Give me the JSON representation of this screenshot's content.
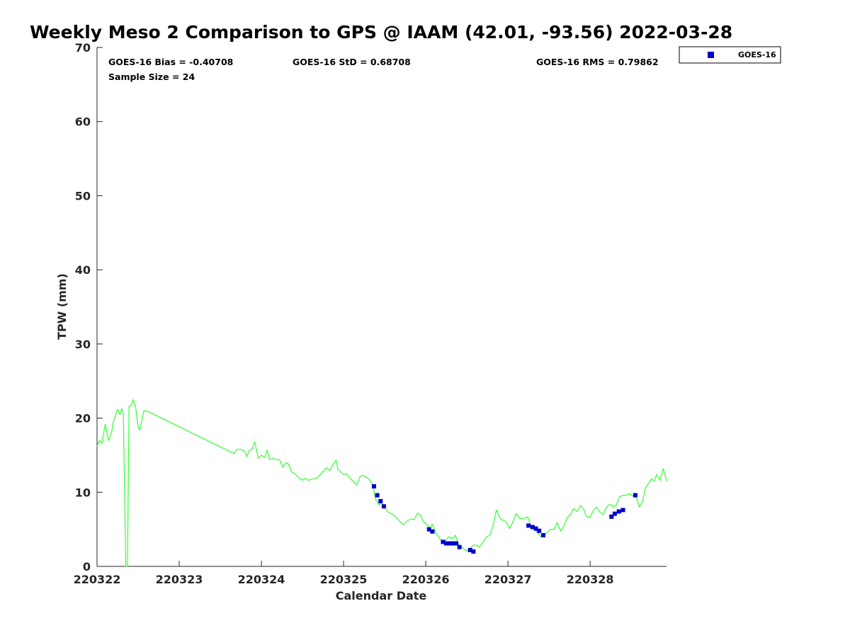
{
  "chart_data": {
    "type": "line",
    "title": "Weekly Meso 2 Comparison to GPS @ IAAM (42.01, -93.56) 2022-03-28",
    "xlabel": "Calendar Date",
    "ylabel": "TPW (mm)",
    "xlim": [
      220322,
      220328.93
    ],
    "ylim": [
      0,
      70
    ],
    "grid": false,
    "x_ticks": [
      {
        "value": 220322,
        "label": "220322"
      },
      {
        "value": 220323,
        "label": "220323"
      },
      {
        "value": 220324,
        "label": "220324"
      },
      {
        "value": 220325,
        "label": "220325"
      },
      {
        "value": 220326,
        "label": "220326"
      },
      {
        "value": 220327,
        "label": "220327"
      },
      {
        "value": 220328,
        "label": "220328"
      }
    ],
    "y_ticks": [
      {
        "value": 0,
        "label": "0"
      },
      {
        "value": 10,
        "label": "10"
      },
      {
        "value": 20,
        "label": "20"
      },
      {
        "value": 30,
        "label": "30"
      },
      {
        "value": 40,
        "label": "40"
      },
      {
        "value": 50,
        "label": "50"
      },
      {
        "value": 60,
        "label": "60"
      },
      {
        "value": 70,
        "label": "70"
      }
    ],
    "stats": {
      "bias": "GOES-16 Bias = -0.40708",
      "std": "GOES-16 StD = 0.68708",
      "rms": "GOES-16 RMS = 0.79862",
      "sample_size": "Sample Size = 24"
    },
    "legend": {
      "placement": "top-right",
      "entries": [
        {
          "label": "GOES-16",
          "color": "#0000cc",
          "marker": "square"
        }
      ]
    },
    "series": [
      {
        "kind": "line",
        "color": "#33ff33",
        "points": [
          [
            220322.0,
            16.2
          ],
          [
            220322.03,
            17.0
          ],
          [
            220322.06,
            16.6
          ],
          [
            220322.1,
            19.2
          ],
          [
            220322.14,
            17.0
          ],
          [
            220322.18,
            18.2
          ],
          [
            220322.2,
            19.6
          ],
          [
            220322.25,
            21.2
          ],
          [
            220322.28,
            20.5
          ],
          [
            220322.3,
            21.3
          ],
          [
            220322.32,
            20.6
          ],
          [
            220322.35,
            0.0
          ],
          [
            220322.37,
            0.0
          ],
          [
            220322.39,
            21.6
          ],
          [
            220322.42,
            21.8
          ],
          [
            220322.44,
            22.5
          ],
          [
            220322.47,
            21.5
          ],
          [
            220322.5,
            18.8
          ],
          [
            220322.52,
            18.4
          ],
          [
            220322.57,
            21.0
          ],
          [
            220322.62,
            20.9
          ],
          [
            220323.67,
            15.2
          ],
          [
            220323.7,
            15.8
          ],
          [
            220323.75,
            15.8
          ],
          [
            220323.8,
            15.5
          ],
          [
            220323.82,
            14.8
          ],
          [
            220323.85,
            15.6
          ],
          [
            220323.89,
            15.9
          ],
          [
            220323.92,
            16.8
          ],
          [
            220323.96,
            14.6
          ],
          [
            220324.0,
            15.0
          ],
          [
            220324.04,
            14.7
          ],
          [
            220324.07,
            15.7
          ],
          [
            220324.1,
            14.4
          ],
          [
            220324.14,
            14.6
          ],
          [
            220324.18,
            14.4
          ],
          [
            220324.22,
            14.4
          ],
          [
            220324.26,
            13.4
          ],
          [
            220324.3,
            14.0
          ],
          [
            220324.33,
            13.8
          ],
          [
            220324.37,
            12.7
          ],
          [
            220324.41,
            12.5
          ],
          [
            220324.45,
            12.0
          ],
          [
            220324.5,
            11.6
          ],
          [
            220324.53,
            11.9
          ],
          [
            220324.57,
            11.6
          ],
          [
            220324.62,
            11.8
          ],
          [
            220324.66,
            11.8
          ],
          [
            220324.71,
            12.3
          ],
          [
            220324.75,
            12.8
          ],
          [
            220324.79,
            13.3
          ],
          [
            220324.83,
            12.9
          ],
          [
            220324.87,
            13.7
          ],
          [
            220324.91,
            14.3
          ],
          [
            220324.93,
            13.1
          ],
          [
            220324.96,
            12.8
          ],
          [
            220325.0,
            12.4
          ],
          [
            220325.04,
            12.5
          ],
          [
            220325.07,
            12.0
          ],
          [
            220325.12,
            11.4
          ],
          [
            220325.16,
            11.0
          ],
          [
            220325.2,
            12.1
          ],
          [
            220325.23,
            12.3
          ],
          [
            220325.28,
            12.0
          ],
          [
            220325.32,
            11.6
          ],
          [
            220325.36,
            10.8
          ],
          [
            220325.39,
            9.0
          ],
          [
            220325.43,
            8.3
          ],
          [
            220325.47,
            8.6
          ],
          [
            220325.52,
            7.6
          ],
          [
            220325.56,
            7.2
          ],
          [
            220325.6,
            7.0
          ],
          [
            220325.65,
            6.5
          ],
          [
            220325.69,
            6.0
          ],
          [
            220325.73,
            5.6
          ],
          [
            220325.77,
            6.1
          ],
          [
            220325.82,
            6.4
          ],
          [
            220325.86,
            6.3
          ],
          [
            220325.9,
            7.2
          ],
          [
            220325.93,
            7.0
          ],
          [
            220325.97,
            6.1
          ],
          [
            220326.0,
            5.8
          ],
          [
            220326.05,
            5.1
          ],
          [
            220326.08,
            5.7
          ],
          [
            220326.12,
            4.6
          ],
          [
            220326.16,
            3.9
          ],
          [
            220326.2,
            3.3
          ],
          [
            220326.24,
            3.5
          ],
          [
            220326.28,
            4.0
          ],
          [
            220326.32,
            3.7
          ],
          [
            220326.36,
            4.2
          ],
          [
            220326.4,
            3.0
          ],
          [
            220326.44,
            2.6
          ],
          [
            220326.48,
            2.2
          ],
          [
            220326.53,
            2.0
          ],
          [
            220326.57,
            2.8
          ],
          [
            220326.61,
            2.9
          ],
          [
            220326.65,
            2.6
          ],
          [
            220326.7,
            3.3
          ],
          [
            220326.74,
            4.0
          ],
          [
            220326.78,
            4.2
          ],
          [
            220326.82,
            5.6
          ],
          [
            220326.86,
            7.6
          ],
          [
            220326.9,
            6.6
          ],
          [
            220326.94,
            6.2
          ],
          [
            220326.97,
            6.1
          ],
          [
            220327.02,
            5.1
          ],
          [
            220327.06,
            6.0
          ],
          [
            220327.1,
            7.1
          ],
          [
            220327.15,
            6.4
          ],
          [
            220327.2,
            6.5
          ],
          [
            220327.24,
            6.7
          ],
          [
            220327.28,
            5.4
          ],
          [
            220327.32,
            5.0
          ],
          [
            220327.36,
            4.6
          ],
          [
            220327.4,
            4.0
          ],
          [
            220327.44,
            4.2
          ],
          [
            220327.48,
            4.6
          ],
          [
            220327.52,
            5.0
          ],
          [
            220327.56,
            5.0
          ],
          [
            220327.6,
            5.9
          ],
          [
            220327.64,
            4.8
          ],
          [
            220327.68,
            5.4
          ],
          [
            220327.72,
            6.6
          ],
          [
            220327.76,
            7.0
          ],
          [
            220327.8,
            7.8
          ],
          [
            220327.84,
            7.4
          ],
          [
            220327.88,
            8.2
          ],
          [
            220327.92,
            7.8
          ],
          [
            220327.95,
            6.8
          ],
          [
            220328.0,
            6.6
          ],
          [
            220328.04,
            7.6
          ],
          [
            220328.08,
            8.0
          ],
          [
            220328.12,
            7.3
          ],
          [
            220328.16,
            7.0
          ],
          [
            220328.2,
            8.0
          ],
          [
            220328.24,
            8.4
          ],
          [
            220328.28,
            8.0
          ],
          [
            220328.32,
            8.3
          ],
          [
            220328.36,
            9.4
          ],
          [
            220328.4,
            9.6
          ],
          [
            220328.44,
            9.6
          ],
          [
            220328.48,
            9.8
          ],
          [
            220328.52,
            9.5
          ],
          [
            220328.56,
            9.3
          ],
          [
            220328.6,
            8.0
          ],
          [
            220328.64,
            8.8
          ],
          [
            220328.67,
            10.5
          ],
          [
            220328.71,
            11.2
          ],
          [
            220328.75,
            11.8
          ],
          [
            220328.78,
            11.5
          ],
          [
            220328.81,
            12.4
          ],
          [
            220328.85,
            11.6
          ],
          [
            220328.89,
            13.2
          ],
          [
            220328.93,
            11.5
          ]
        ]
      },
      {
        "kind": "scatter",
        "name": "GOES-16",
        "color": "#0000cc",
        "points": [
          [
            220325.37,
            10.8
          ],
          [
            220325.41,
            9.6
          ],
          [
            220325.45,
            8.8
          ],
          [
            220325.49,
            8.1
          ],
          [
            220326.04,
            5.0
          ],
          [
            220326.08,
            4.7
          ],
          [
            220326.21,
            3.3
          ],
          [
            220326.25,
            3.1
          ],
          [
            220326.29,
            3.1
          ],
          [
            220326.33,
            3.1
          ],
          [
            220326.37,
            3.1
          ],
          [
            220326.41,
            2.6
          ],
          [
            220326.54,
            2.2
          ],
          [
            220326.58,
            2.0
          ],
          [
            220327.25,
            5.5
          ],
          [
            220327.3,
            5.3
          ],
          [
            220327.34,
            5.1
          ],
          [
            220327.38,
            4.8
          ],
          [
            220327.43,
            4.2
          ],
          [
            220328.26,
            6.7
          ],
          [
            220328.3,
            7.1
          ],
          [
            220328.35,
            7.4
          ],
          [
            220328.4,
            7.6
          ],
          [
            220328.55,
            9.6
          ]
        ]
      }
    ]
  }
}
